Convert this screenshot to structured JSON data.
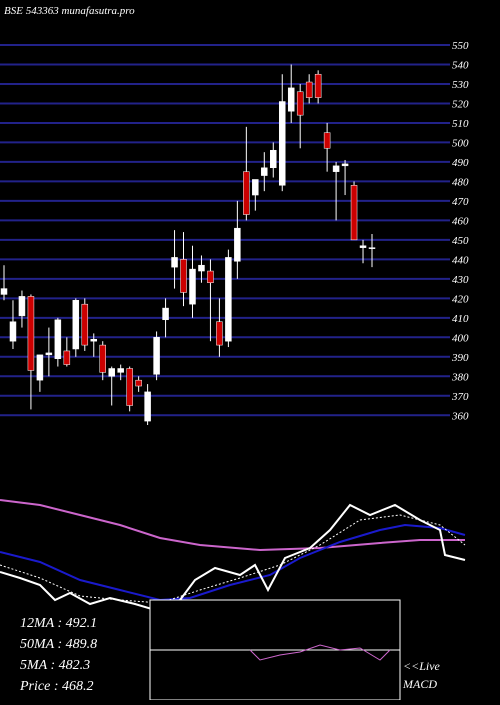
{
  "chart_data": {
    "type": "candlestick",
    "title": "BSE 543363 munafasutra.pro",
    "ylim": [
      355,
      550
    ],
    "yticks": [
      360,
      370,
      380,
      390,
      400,
      410,
      420,
      430,
      440,
      450,
      460,
      470,
      480,
      490,
      500,
      510,
      520,
      530,
      540,
      550
    ],
    "grid": true,
    "grid_color": "#22228a",
    "up_color": "#ffffff",
    "down_color": "#cc0000",
    "open": [
      422,
      398,
      411,
      421,
      378,
      391,
      389,
      393,
      394,
      417,
      398,
      396,
      380,
      382,
      384,
      378,
      357,
      381,
      409,
      436,
      440,
      417,
      434,
      434,
      408,
      398,
      439,
      485,
      473,
      483,
      487,
      478,
      516,
      526,
      531,
      535,
      505,
      485,
      488,
      478,
      446,
      446
    ],
    "high": [
      437,
      419,
      424,
      422,
      391,
      405,
      410,
      400,
      420,
      420,
      402,
      398,
      385,
      386,
      385,
      380,
      376,
      403,
      420,
      455,
      454,
      447,
      442,
      440,
      420,
      445,
      470,
      508,
      480,
      495,
      500,
      535,
      540,
      530,
      535,
      537,
      510,
      490,
      491,
      480,
      450,
      453
    ],
    "low": [
      419,
      394,
      405,
      363,
      372,
      380,
      385,
      385,
      390,
      393,
      390,
      378,
      365,
      378,
      362,
      372,
      355,
      378,
      400,
      425,
      416,
      410,
      428,
      398,
      390,
      395,
      430,
      460,
      465,
      475,
      482,
      475,
      510,
      497,
      520,
      520,
      485,
      460,
      473,
      450,
      438,
      436
    ],
    "close": [
      425,
      408,
      421,
      383,
      391,
      392,
      409,
      386,
      419,
      396,
      399,
      382,
      384,
      384,
      365,
      375,
      372,
      400,
      415,
      441,
      423,
      435,
      437,
      428,
      396,
      441,
      456,
      463,
      481,
      487,
      496,
      521,
      528,
      514,
      523,
      523,
      497,
      488,
      489,
      450,
      447,
      446
    ],
    "indicators": [
      "12MA : 492.1",
      "50MA : 489.8",
      "5MA : 482.3",
      "Price   : 468.2"
    ],
    "live_label": "<<Live",
    "macd_label": "MACD"
  }
}
